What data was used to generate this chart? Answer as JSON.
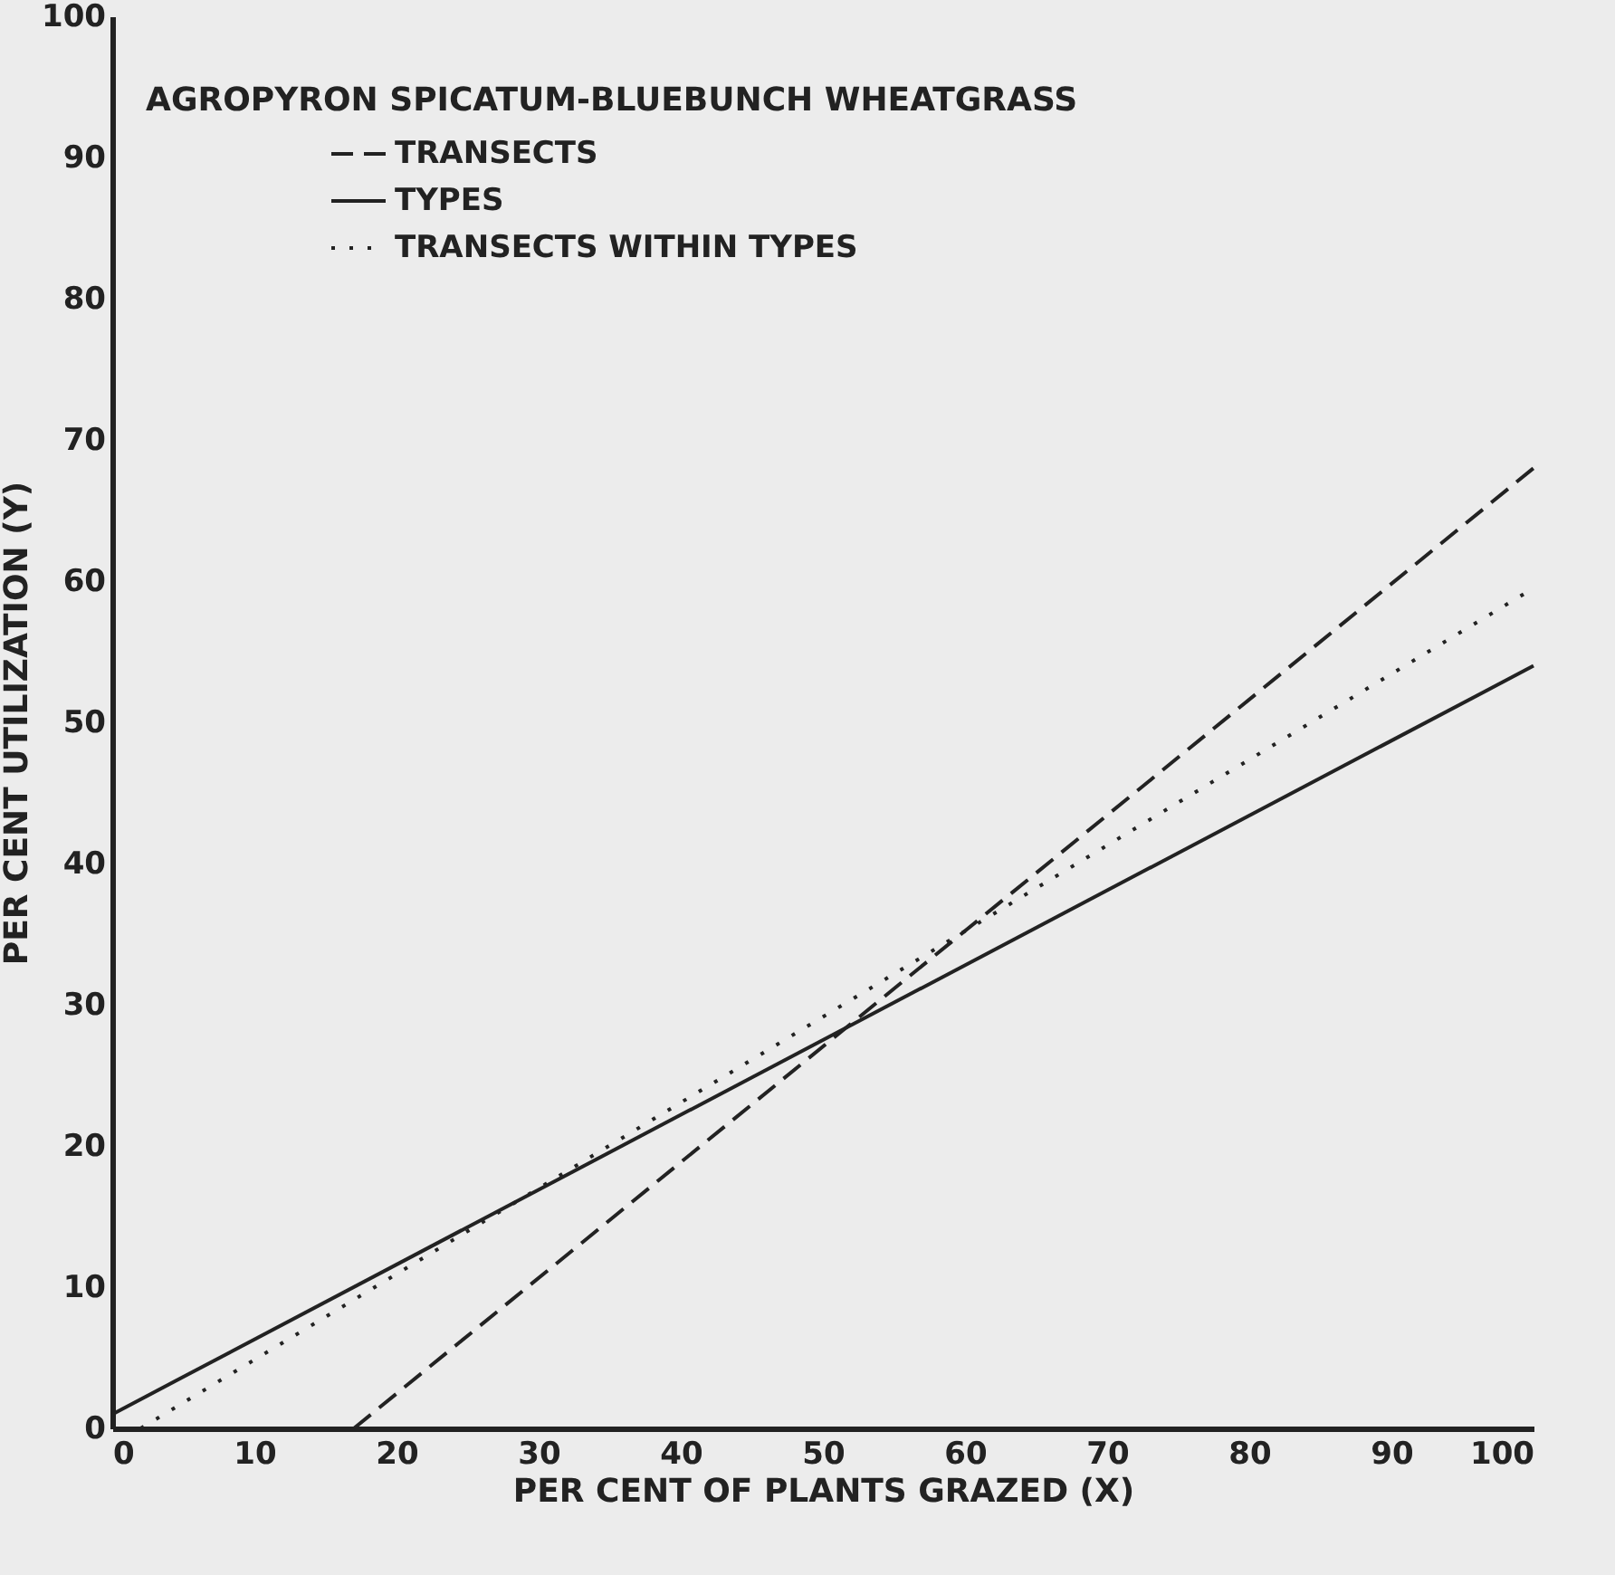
{
  "chart_data": {
    "type": "line",
    "title": "AGROPYRON SPICATUM-BLUEBUNCH WHEATGRASS",
    "xlabel": "PER CENT OF PLANTS GRAZED (X)",
    "ylabel": "PER CENT UTILIZATION (Y)",
    "series": [
      {
        "name": "TRANSECTS",
        "color": "#222222",
        "line_style": "dashed",
        "x": [
          17,
          100
        ],
        "values": [
          0,
          68
        ]
      },
      {
        "name": "TYPES",
        "color": "#222222",
        "line_style": "solid",
        "x": [
          0,
          100
        ],
        "values": [
          1,
          54
        ]
      },
      {
        "name": "TRANSECTS WITHIN TYPES",
        "color": "#222222",
        "line_style": "dotted",
        "x": [
          2,
          100
        ],
        "values": [
          0,
          59.5
        ]
      }
    ],
    "xlim": [
      0,
      100
    ],
    "xticks": [
      0,
      10,
      20,
      30,
      40,
      50,
      60,
      70,
      80,
      90,
      100
    ],
    "ylim": [
      0,
      100
    ],
    "yticks": [
      0,
      10,
      20,
      30,
      40,
      50,
      60,
      70,
      80,
      90,
      100
    ],
    "grid": false,
    "legend": "top left"
  }
}
